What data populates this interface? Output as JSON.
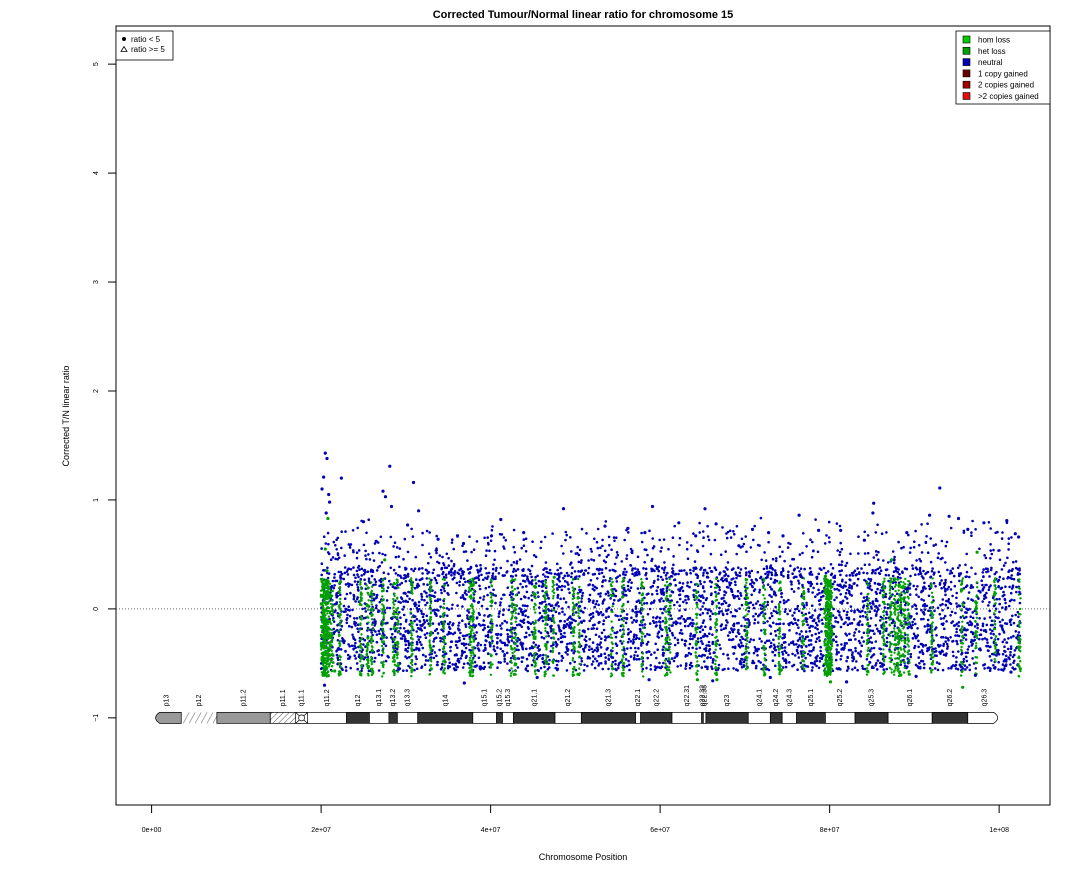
{
  "chart_data": {
    "type": "scatter",
    "title": "Corrected Tumour/Normal linear ratio for chromosome  15",
    "xlabel": "Chromosome Position",
    "ylabel": "Corrected T/N linear ratio",
    "xlim": [
      -4200000,
      106000000
    ],
    "ylim": [
      -1.8,
      5.35
    ],
    "x_ticks": [
      {
        "v": 0,
        "label": "0e+00"
      },
      {
        "v": 20000000,
        "label": "2e+07"
      },
      {
        "v": 40000000,
        "label": "4e+07"
      },
      {
        "v": 60000000,
        "label": "6e+07"
      },
      {
        "v": 80000000,
        "label": "8e+07"
      },
      {
        "v": 100000000,
        "label": "1e+08"
      }
    ],
    "y_ticks": [
      {
        "v": -1,
        "label": "−1"
      },
      {
        "v": 0,
        "label": "0"
      },
      {
        "v": 1,
        "label": "1"
      },
      {
        "v": 2,
        "label": "2"
      },
      {
        "v": 3,
        "label": "3"
      },
      {
        "v": 4,
        "label": "4"
      },
      {
        "v": 5,
        "label": "5"
      }
    ],
    "reference_line": {
      "y": 0,
      "style": "dotted"
    },
    "data_range": {
      "x_start": 20000000,
      "x_end": 102500000
    },
    "symbol_legend": {
      "placement": "top-left",
      "entries": [
        {
          "symbol": "circle",
          "label": "ratio < 5"
        },
        {
          "symbol": "triangle",
          "label": "ratio >= 5"
        }
      ]
    },
    "class_legend": {
      "placement": "top-right",
      "entries": [
        {
          "label": "hom loss",
          "color": "#00cc00"
        },
        {
          "label": "het loss",
          "color": "#00a000"
        },
        {
          "label": "neutral",
          "color": "#0000b4"
        },
        {
          "label": "1 copy gained",
          "color": "#6b0000"
        },
        {
          "label": "2 copies gained",
          "color": "#a00000"
        },
        {
          "label": ">2 copies gained",
          "color": "#e01010"
        }
      ]
    },
    "series": [
      {
        "class": "neutral",
        "color": "#0000b4",
        "points": [
          [
            20500000,
            1.43
          ],
          [
            20700000,
            1.38
          ],
          [
            20300000,
            1.21
          ],
          [
            20900000,
            1.05
          ],
          [
            20100000,
            1.1
          ],
          [
            21000000,
            0.98
          ],
          [
            20600000,
            0.88
          ],
          [
            22400000,
            1.2
          ],
          [
            27300000,
            1.08
          ],
          [
            27600000,
            1.03
          ],
          [
            28100000,
            1.31
          ],
          [
            30900000,
            1.16
          ],
          [
            28300000,
            0.94
          ],
          [
            31500000,
            0.9
          ],
          [
            25000000,
            0.8
          ],
          [
            26500000,
            0.62
          ],
          [
            30200000,
            0.77
          ],
          [
            33800000,
            0.64
          ],
          [
            36800000,
            0.6
          ],
          [
            40100000,
            0.67
          ],
          [
            41200000,
            0.82
          ],
          [
            43900000,
            0.7
          ],
          [
            48600000,
            0.92
          ],
          [
            53500000,
            0.76
          ],
          [
            56200000,
            0.74
          ],
          [
            58200000,
            0.7
          ],
          [
            59100000,
            0.94
          ],
          [
            62200000,
            0.79
          ],
          [
            64200000,
            0.67
          ],
          [
            65300000,
            0.92
          ],
          [
            66600000,
            0.78
          ],
          [
            69300000,
            0.58
          ],
          [
            70900000,
            0.73
          ],
          [
            72800000,
            0.7
          ],
          [
            74500000,
            0.67
          ],
          [
            76400000,
            0.86
          ],
          [
            78700000,
            0.72
          ],
          [
            81300000,
            0.72
          ],
          [
            84100000,
            0.63
          ],
          [
            85200000,
            0.97
          ],
          [
            85100000,
            0.88
          ],
          [
            87600000,
            0.45
          ],
          [
            89100000,
            0.7
          ],
          [
            91800000,
            0.86
          ],
          [
            93000000,
            1.11
          ],
          [
            94100000,
            0.85
          ],
          [
            95200000,
            0.83
          ],
          [
            96300000,
            0.73
          ],
          [
            98200000,
            0.79
          ],
          [
            100900000,
            0.81
          ],
          [
            101900000,
            0.69
          ],
          [
            102300000,
            0.66
          ],
          [
            20400000,
            -0.7
          ],
          [
            36900000,
            -0.68
          ],
          [
            45500000,
            -0.63
          ],
          [
            58700000,
            -0.65
          ],
          [
            66200000,
            -0.66
          ],
          [
            73000000,
            -0.63
          ],
          [
            82000000,
            -0.67
          ],
          [
            90200000,
            -0.62
          ],
          [
            97200000,
            -0.61
          ],
          [
            101400000,
            -0.58
          ]
        ]
      },
      {
        "class": "het loss",
        "color": "#00a000",
        "points": [
          [
            20800000,
            0.83
          ],
          [
            20500000,
            0.55
          ],
          [
            20700000,
            0.35
          ],
          [
            20400000,
            0.1
          ],
          [
            20600000,
            -0.2
          ],
          [
            20800000,
            -0.45
          ],
          [
            21600000,
            -0.57
          ],
          [
            22300000,
            0.25
          ],
          [
            24800000,
            -0.45
          ],
          [
            25600000,
            -0.53
          ],
          [
            26100000,
            -0.58
          ],
          [
            27500000,
            0.45
          ],
          [
            29100000,
            -0.52
          ],
          [
            33000000,
            -0.55
          ],
          [
            37700000,
            -0.4
          ],
          [
            42800000,
            -0.6
          ],
          [
            45300000,
            0.2
          ],
          [
            46600000,
            -0.5
          ],
          [
            47500000,
            0.29
          ],
          [
            50300000,
            -0.6
          ],
          [
            54400000,
            -0.55
          ],
          [
            55700000,
            -0.5
          ],
          [
            60800000,
            -0.6
          ],
          [
            64400000,
            -0.65
          ],
          [
            66700000,
            -0.65
          ],
          [
            70300000,
            0.1
          ],
          [
            74300000,
            -0.56
          ],
          [
            79500000,
            0.3
          ],
          [
            79800000,
            -0.6
          ],
          [
            80100000,
            -0.67
          ],
          [
            79700000,
            0.05
          ],
          [
            80200000,
            -0.3
          ],
          [
            87300000,
            0.45
          ],
          [
            88000000,
            -0.5
          ],
          [
            88500000,
            0.2
          ],
          [
            89400000,
            -0.6
          ],
          [
            95700000,
            -0.72
          ],
          [
            97400000,
            0.52
          ],
          [
            102500000,
            -0.55
          ],
          [
            102300000,
            -0.35
          ]
        ]
      }
    ],
    "loss_segments": [
      20100000,
      20200000,
      20300000,
      20400000,
      20500000,
      20600000,
      20700000,
      20800000,
      21000000,
      21300000,
      22200000,
      24700000,
      25500000,
      26000000,
      27300000,
      28600000,
      29000000,
      30700000,
      32900000,
      34500000,
      37600000,
      37900000,
      40100000,
      42500000,
      42900000,
      45200000,
      46500000,
      47400000,
      49800000,
      50400000,
      54300000,
      55600000,
      57900000,
      60700000,
      61100000,
      64300000,
      66600000,
      70200000,
      72300000,
      74100000,
      76900000,
      79500000,
      79600000,
      79700000,
      79800000,
      79900000,
      80000000,
      80100000,
      80200000,
      84500000,
      86400000,
      87200000,
      87700000,
      88100000,
      88400000,
      88800000,
      89300000,
      92100000,
      95600000,
      97300000,
      99500000,
      102400000
    ],
    "ideogram": {
      "y": -1.0,
      "bands": [
        {
          "name": "p13",
          "start": 0,
          "end": 3500000,
          "type": "p-cap"
        },
        {
          "name": "p12",
          "start": 3500000,
          "end": 7700000,
          "type": "stalk"
        },
        {
          "name": "p11.2",
          "start": 7700000,
          "end": 14000000,
          "type": "gvar"
        },
        {
          "name": "p11.1",
          "start": 14000000,
          "end": 17000000,
          "type": "hatched"
        },
        {
          "name": "q11.1",
          "start": 17000000,
          "end": 18400000,
          "type": "centromere"
        },
        {
          "name": "q11.2",
          "start": 18400000,
          "end": 23000000,
          "type": "gneg"
        },
        {
          "name": "q12",
          "start": 23000000,
          "end": 25700000,
          "type": "gpos"
        },
        {
          "name": "q13.1",
          "start": 25700000,
          "end": 28000000,
          "type": "gneg"
        },
        {
          "name": "q13.2",
          "start": 28000000,
          "end": 29000000,
          "type": "gpos"
        },
        {
          "name": "q13.3",
          "start": 29000000,
          "end": 31400000,
          "type": "gneg"
        },
        {
          "name": "q14",
          "start": 31400000,
          "end": 37900000,
          "type": "gpos"
        },
        {
          "name": "q15.1",
          "start": 37900000,
          "end": 40700000,
          "type": "gneg"
        },
        {
          "name": "q15.2",
          "start": 40700000,
          "end": 41400000,
          "type": "gpos"
        },
        {
          "name": "q15.3",
          "start": 41400000,
          "end": 42700000,
          "type": "gneg"
        },
        {
          "name": "q21.1",
          "start": 42700000,
          "end": 47600000,
          "type": "gpos"
        },
        {
          "name": "q21.2",
          "start": 47600000,
          "end": 50700000,
          "type": "gneg"
        },
        {
          "name": "q21.3",
          "start": 50700000,
          "end": 57100000,
          "type": "gpos"
        },
        {
          "name": "q22.1",
          "start": 57100000,
          "end": 57700000,
          "type": "gneg"
        },
        {
          "name": "q22.2",
          "start": 57700000,
          "end": 61400000,
          "type": "gpos"
        },
        {
          "name": "q22.31",
          "start": 61400000,
          "end": 64900000,
          "type": "gneg"
        },
        {
          "name": "q22.32",
          "start": 64900000,
          "end": 65100000,
          "type": "gpos"
        },
        {
          "name": "q22.33",
          "start": 65100000,
          "end": 65400000,
          "type": "gneg"
        },
        {
          "name": "q23",
          "start": 65400000,
          "end": 70400000,
          "type": "gpos"
        },
        {
          "name": "q24.1",
          "start": 70400000,
          "end": 73000000,
          "type": "gneg"
        },
        {
          "name": "q24.2",
          "start": 73000000,
          "end": 74400000,
          "type": "gpos"
        },
        {
          "name": "q24.3",
          "start": 74400000,
          "end": 76100000,
          "type": "gneg"
        },
        {
          "name": "q25.1",
          "start": 76100000,
          "end": 79500000,
          "type": "gpos"
        },
        {
          "name": "q25.2",
          "start": 79500000,
          "end": 83000000,
          "type": "gneg"
        },
        {
          "name": "q25.3",
          "start": 83000000,
          "end": 86900000,
          "type": "gpos"
        },
        {
          "name": "q26.1",
          "start": 86900000,
          "end": 92100000,
          "type": "gneg"
        },
        {
          "name": "q26.2",
          "start": 92100000,
          "end": 96300000,
          "type": "gpos"
        },
        {
          "name": "q26.3",
          "start": 96300000,
          "end": 100300000,
          "type": "q-cap"
        }
      ]
    }
  }
}
